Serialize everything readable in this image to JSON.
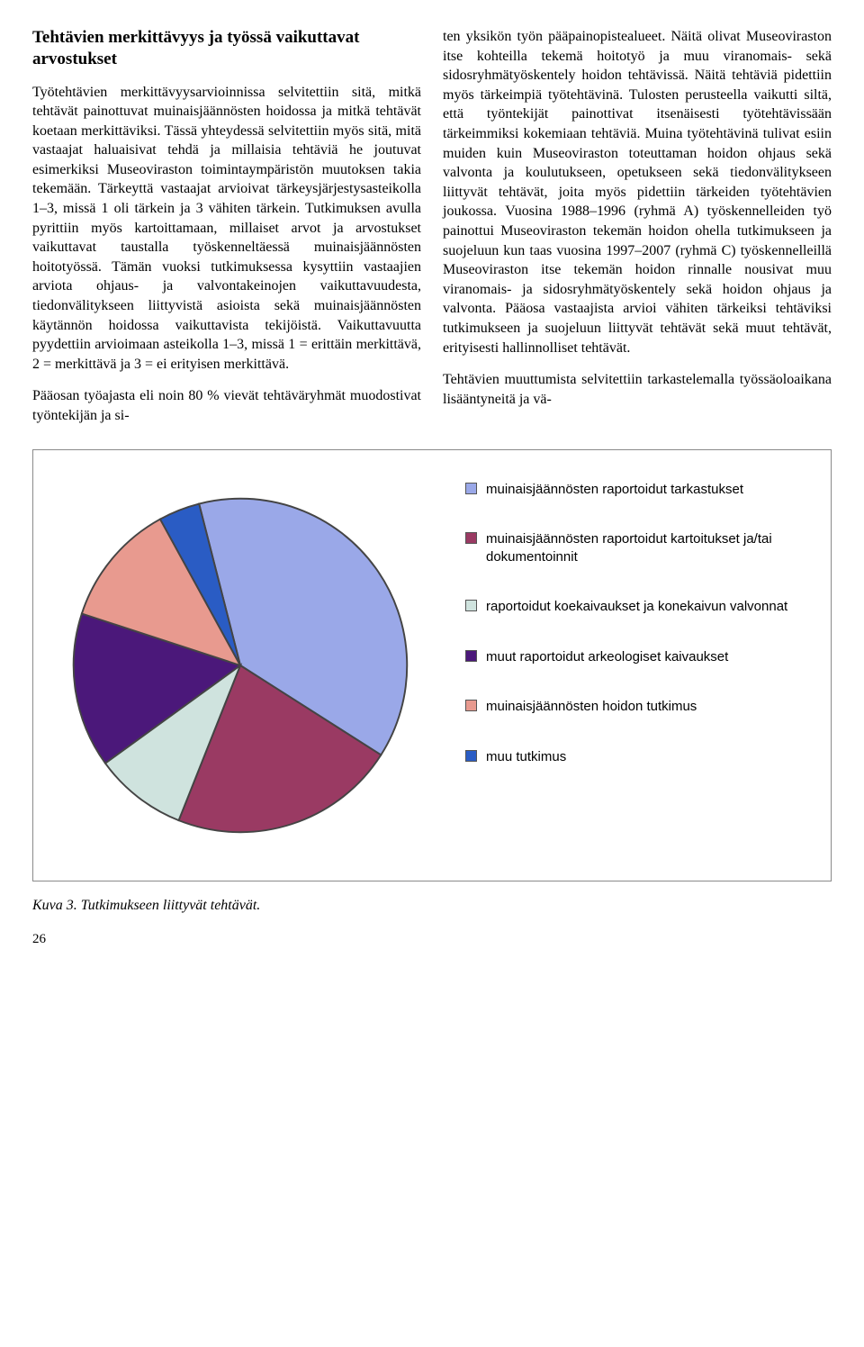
{
  "heading": "Tehtävien merkittävyys ja työssä vaikuttavat arvostukset",
  "left_paragraphs": [
    "Työtehtävien merkittävyysarvioinnissa selvitettiin sitä, mitkä tehtävät painottuvat muinaisjäännösten hoidossa ja mitkä tehtävät koetaan merkittäviksi. Tässä yhteydessä selvitettiin myös sitä, mitä vastaajat haluaisivat tehdä ja millaisia tehtäviä he joutuvat esimerkiksi Museoviraston toimintaympäristön muutoksen takia tekemään. Tärkeyttä vastaajat arvioivat tärkeysjärjestysasteikolla 1–3, missä 1 oli tärkein ja 3 vähiten tärkein. Tutkimuksen avulla pyrittiin myös kartoittamaan, millaiset arvot ja arvostukset vaikuttavat taustalla työskenneltäessä muinaisjäännösten hoitotyössä. Tämän vuoksi tutkimuksessa kysyttiin vastaajien arviota ohjaus- ja valvontakeinojen vaikuttavuudesta, tiedonvälitykseen liittyvistä asioista sekä muinaisjäännösten käytännön hoidossa vaikuttavista tekijöistä. Vaikuttavuutta pyydettiin arvioimaan asteikolla 1–3, missä 1 = erittäin merkittävä, 2 = merkittävä ja 3 = ei erityisen merkittävä.",
    "Pääosan työajasta eli noin 80 % vievät tehtäväryhmät muodostivat työntekijän ja si-"
  ],
  "right_paragraphs": [
    "ten yksikön työn pääpainopistealueet. Näitä olivat Museoviraston itse kohteilla tekemä hoitotyö ja muu viranomais- sekä sidosryhmätyöskentely hoidon tehtävissä. Näitä tehtäviä pidettiin myös tärkeimpiä työtehtävinä. Tulosten perusteella vaikutti siltä, että työntekijät painottivat itsenäisesti työtehtävissään tärkeimmiksi kokemiaan tehtäviä. Muina työtehtävinä tulivat esiin muiden kuin Museoviraston toteuttaman hoidon ohjaus sekä valvonta ja koulutukseen, opetukseen sekä tiedonvälitykseen liittyvät tehtävät, joita myös pidettiin tärkeiden työtehtävien joukossa. Vuosina 1988–1996 (ryhmä A) työskennelleiden työ painottui Museoviraston tekemän hoidon ohella tutkimukseen ja suojeluun kun taas vuosina 1997–2007 (ryhmä C) työskennelleillä Museoviraston itse tekemän hoidon rinnalle nousivat muu viranomais- ja sidosryhmätyöskentely sekä hoidon ohjaus ja valvonta. Pääosa vastaajista arvioi vähiten tärkeiksi tehtäviksi tutkimukseen ja suojeluun liittyvät tehtävät sekä muut tehtävät, erityisesti hallinnolliset tehtävät.",
    "Tehtävien muuttumista selvitettiin tarkastelemalla työssäoloaikana lisääntyneitä ja vä-"
  ],
  "chart": {
    "type": "pie",
    "slices": [
      {
        "label": "muinaisjäännösten raportoidut tarkastukset",
        "value": 38,
        "color": "#9aa8e8"
      },
      {
        "label": "muinaisjäännösten raportoidut kartoitukset ja/tai dokumentoinnit",
        "value": 22,
        "color": "#9a3a63"
      },
      {
        "label": "raportoidut koekaivaukset ja konekaivun valvonnat",
        "value": 9,
        "color": "#cfe3de"
      },
      {
        "label": "muut raportoidut arkeologiset kaivaukset",
        "value": 15,
        "color": "#4b187a"
      },
      {
        "label": "muinaisjäännösten hoidon tutkimus",
        "value": 12,
        "color": "#e89a8f"
      },
      {
        "label": "muu tutkimus",
        "value": 4,
        "color": "#2a5cc4"
      }
    ],
    "stroke": "#444",
    "stroke_width": 1
  },
  "caption": "Kuva 3. Tutkimukseen liittyvät tehtävät.",
  "page_number": "26"
}
